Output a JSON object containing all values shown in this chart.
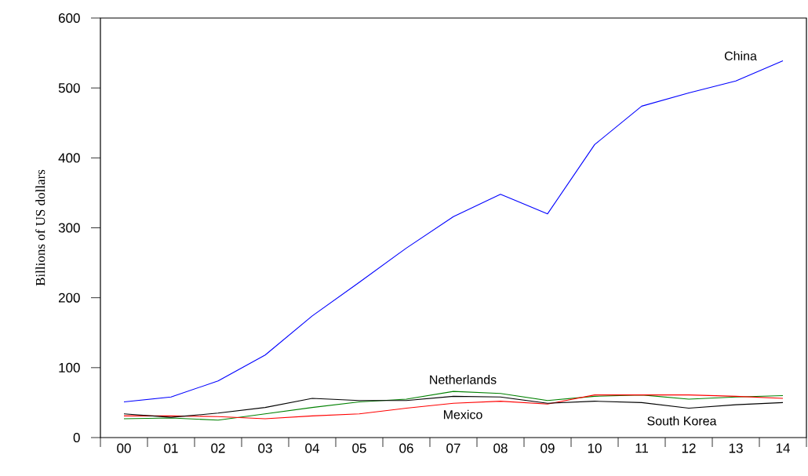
{
  "chart_data": {
    "type": "line",
    "ylabel": "Billions of US dollars",
    "categories": [
      "00",
      "01",
      "02",
      "03",
      "04",
      "05",
      "06",
      "07",
      "08",
      "09",
      "10",
      "11",
      "12",
      "13",
      "14"
    ],
    "series": [
      {
        "name": "China",
        "color": "#0000ff",
        "values": [
          51,
          58,
          81,
          118,
          174,
          222,
          271,
          316,
          348,
          320,
          419,
          474,
          493,
          510,
          539
        ]
      },
      {
        "name": "Netherlands",
        "color": "#008000",
        "values": [
          27,
          28,
          25,
          34,
          43,
          51,
          55,
          66,
          63,
          53,
          59,
          61,
          55,
          58,
          60
        ]
      },
      {
        "name": "Mexico",
        "color": "#ff0000",
        "values": [
          31,
          31,
          30,
          27,
          31,
          34,
          42,
          49,
          52,
          48,
          61,
          61,
          61,
          59,
          56
        ]
      },
      {
        "name": "South Korea",
        "color": "#000000",
        "values": [
          34,
          29,
          35,
          43,
          56,
          53,
          53,
          59,
          58,
          49,
          52,
          50,
          42,
          47,
          50
        ]
      }
    ],
    "ylim": [
      0,
      600
    ],
    "yticks": [
      0,
      100,
      200,
      300,
      400,
      500,
      600
    ],
    "grid": false,
    "legend": false
  }
}
